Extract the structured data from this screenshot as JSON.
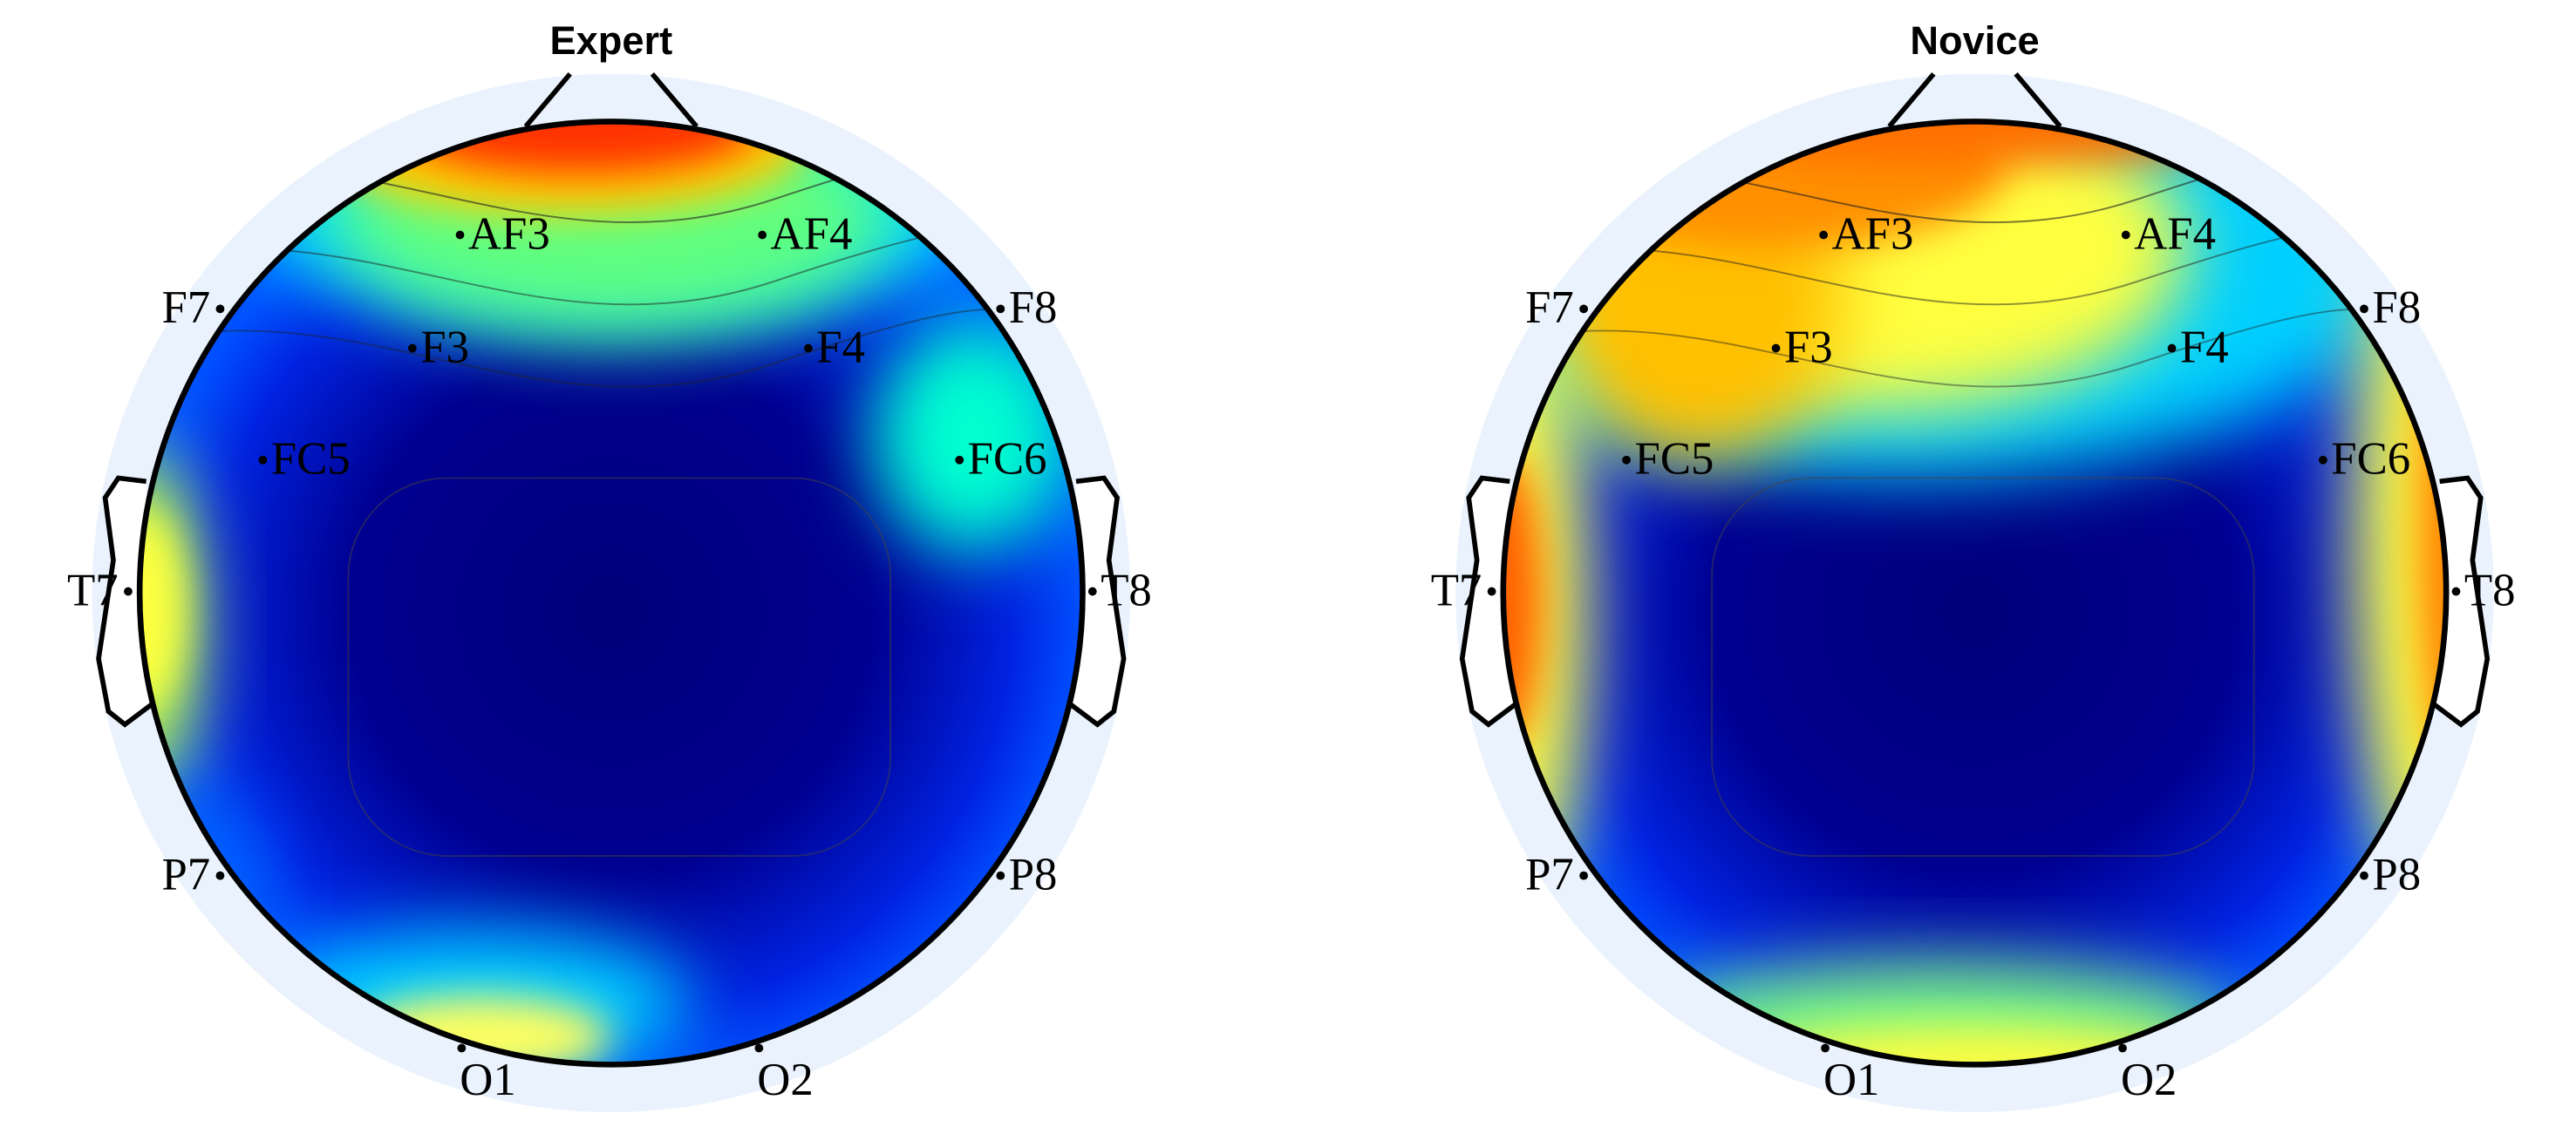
{
  "panels": [
    {
      "title": "Expert",
      "electrodes": [
        "AF3",
        "AF4",
        "F7",
        "F8",
        "F3",
        "F4",
        "FC5",
        "FC6",
        "T7",
        "T8",
        "P7",
        "P8",
        "O1",
        "O2"
      ]
    },
    {
      "title": "Novice",
      "electrodes": [
        "AF3",
        "AF4",
        "F7",
        "F8",
        "F3",
        "F4",
        "FC5",
        "FC6",
        "T7",
        "T8",
        "P7",
        "P8",
        "O1",
        "O2"
      ]
    }
  ]
}
